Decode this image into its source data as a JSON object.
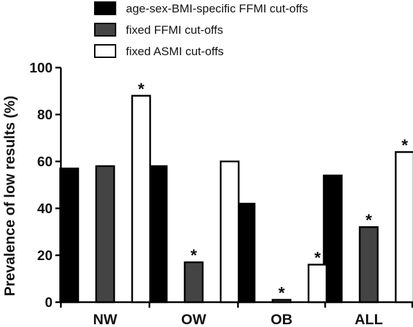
{
  "chart_data": {
    "type": "bar",
    "categories": [
      "NW",
      "OW",
      "OB",
      "ALL"
    ],
    "series": [
      {
        "name": "age-sex-BMI-specific FFMI cut-offs",
        "values": [
          57,
          58,
          42,
          54
        ],
        "color": "#000000",
        "significant": [
          false,
          false,
          false,
          false
        ]
      },
      {
        "name": "fixed FFMI cut-offs",
        "values": [
          58,
          17,
          1,
          32
        ],
        "color": "#444444",
        "significant": [
          false,
          true,
          true,
          true
        ]
      },
      {
        "name": "fixed ASMI cut-offs",
        "values": [
          88,
          60,
          16,
          64
        ],
        "color": "#ffffff",
        "significant": [
          true,
          false,
          true,
          true
        ]
      }
    ],
    "title": "",
    "xlabel": "",
    "ylabel": "Prevalence of low results (%)",
    "ylim": [
      0,
      100
    ],
    "yticks": [
      0,
      20,
      40,
      60,
      80,
      100
    ],
    "grid": false,
    "legend_position": "top",
    "significance_marker": "*"
  }
}
